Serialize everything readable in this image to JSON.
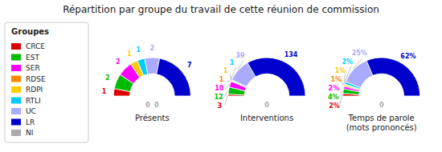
{
  "chart_data": [
    {
      "type": "donut",
      "title": "Répartition par groupe du travail de cette réunion de commission",
      "xlabel": "Présents",
      "legend": "left",
      "legend_title": "Groupes",
      "categories": [
        "CRCE",
        "EST",
        "SER",
        "RDSE",
        "RDPI",
        "RTLI",
        "UC",
        "LR",
        "NI"
      ],
      "colors": [
        "#dd0000",
        "#00bb00",
        "#ff00ff",
        "#ff8800",
        "#ffcc00",
        "#00ccff",
        "#aaaaff",
        "#0000cc",
        "#aaaaaa"
      ],
      "values": [
        1,
        2,
        2,
        0,
        1,
        1,
        2,
        7,
        0
      ],
      "data_labels": true
    },
    {
      "type": "donut",
      "xlabel": "Interventions",
      "categories": [
        "CRCE",
        "EST",
        "SER",
        "RDSE",
        "RDPI",
        "RTLI",
        "UC",
        "LR",
        "NI"
      ],
      "colors": [
        "#dd0000",
        "#00bb00",
        "#ff00ff",
        "#ff8800",
        "#ffcc00",
        "#00ccff",
        "#aaaaff",
        "#0000cc",
        "#aaaaaa"
      ],
      "values": [
        3,
        12,
        10,
        1,
        1,
        1,
        39,
        134,
        0
      ],
      "data_labels": true
    },
    {
      "type": "donut",
      "xlabel": "Temps de parole\n(mots prononcés)",
      "categories": [
        "CRCE",
        "EST",
        "SER",
        "RDSE",
        "RDPI",
        "RTLI",
        "UC",
        "LR",
        "NI"
      ],
      "colors": [
        "#dd0000",
        "#00bb00",
        "#ff00ff",
        "#ff8800",
        "#ffcc00",
        "#00ccff",
        "#aaaaff",
        "#0000cc",
        "#aaaaaa"
      ],
      "values": [
        2,
        4,
        2,
        1,
        1,
        2,
        25,
        62,
        0
      ],
      "value_labels": [
        "2%",
        "4%",
        "2%",
        "1%",
        "1%",
        "2%",
        "25%",
        "62%",
        "0"
      ],
      "data_labels": true
    }
  ]
}
